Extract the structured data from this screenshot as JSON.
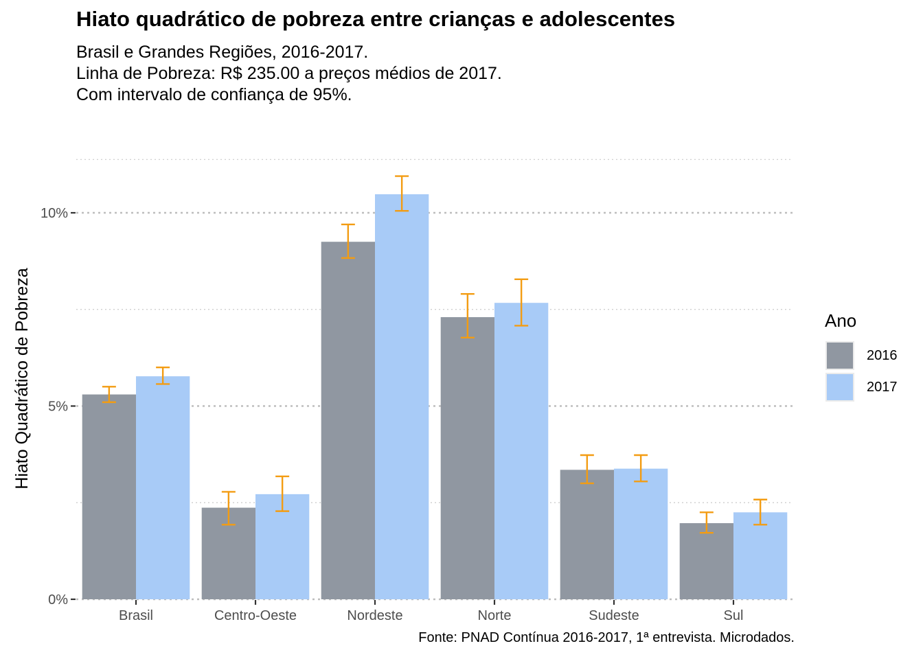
{
  "header": {
    "title": "Hiato quadrático de pobreza entre crianças e adolescentes",
    "subtitle_lines": [
      "Brasil e Grandes Regiões, 2016-2017.",
      "Linha de Pobreza: R$ 235.00 a preços médios de 2017.",
      "Com intervalo de confiança de 95%."
    ]
  },
  "caption": "Fonte: PNAD Contínua 2016-2017, 1ª entrevista. Microdados.",
  "colors": {
    "series_2016": "#9097a1",
    "series_2017": "#a8cbf7",
    "error_bar": "#f39c12",
    "grid": "#bdbdbd",
    "text_axis": "#4d4d4d"
  },
  "chart_data": {
    "type": "bar",
    "categories": [
      "Brasil",
      "Centro-Oeste",
      "Nordeste",
      "Norte",
      "Sudeste",
      "Sul"
    ],
    "ylabel": "Hiato Quadrático de Pobreza",
    "xlabel": "",
    "ylim": [
      0,
      0.12
    ],
    "y_ticks": [
      0,
      0.05,
      0.1
    ],
    "y_tick_labels": [
      "0%",
      "5%",
      "10%"
    ],
    "grid": true,
    "legend_title": "Ano",
    "legend_position": "right",
    "series": [
      {
        "name": "2016",
        "values": [
          0.053,
          0.0237,
          0.0925,
          0.073,
          0.0335,
          0.0197
        ],
        "ci_low": [
          0.051,
          0.0193,
          0.0883,
          0.0677,
          0.03,
          0.0172
        ],
        "ci_high": [
          0.055,
          0.0278,
          0.097,
          0.079,
          0.0373,
          0.0225
        ]
      },
      {
        "name": "2017",
        "values": [
          0.0577,
          0.0272,
          0.1048,
          0.0767,
          0.0338,
          0.0225
        ],
        "ci_low": [
          0.0557,
          0.0228,
          0.1005,
          0.0708,
          0.0305,
          0.0193
        ],
        "ci_high": [
          0.06,
          0.0318,
          0.1095,
          0.0828,
          0.0373,
          0.0258
        ]
      }
    ]
  }
}
